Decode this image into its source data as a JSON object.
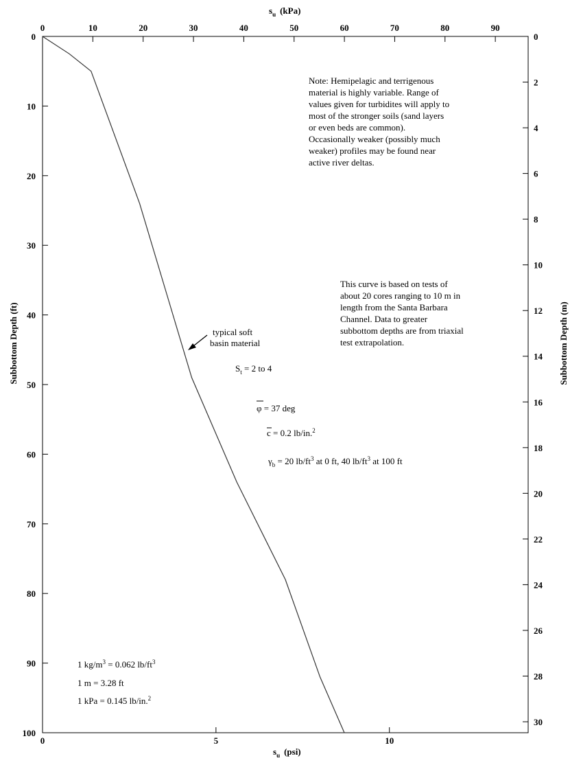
{
  "chart_data": {
    "type": "line",
    "x_label_bottom": "s",
    "x_label_bottom_sub": "u",
    "x_label_bottom_unit": "(psi)",
    "x_label_top": "s",
    "x_label_top_sub": "u",
    "x_label_top_unit": "(kPa)",
    "y_label_left": "Subbottom Depth (ft)",
    "y_label_right": "Subbottom Depth (m)",
    "xlim_psi": [
      0,
      14
    ],
    "ylim_ft": [
      0,
      100
    ],
    "x_ticks_psi": [
      0,
      5,
      10
    ],
    "x_ticks_kpa": [
      0,
      10,
      20,
      30,
      40,
      50,
      60,
      70,
      80,
      90
    ],
    "y_ticks_ft": [
      0,
      10,
      20,
      30,
      40,
      50,
      60,
      70,
      80,
      90,
      100
    ],
    "y_ticks_m": [
      0,
      2,
      4,
      6,
      8,
      10,
      12,
      14,
      16,
      18,
      20,
      22,
      24,
      26,
      28,
      30
    ],
    "grid": false,
    "series": [
      {
        "x": [
          0,
          0.77,
          1.4,
          2.8,
          4.3,
          5.6,
          7.0,
          8.0,
          8.7
        ],
        "y": [
          0,
          2.5,
          5,
          24,
          49,
          64,
          78,
          92,
          100
        ]
      }
    ]
  },
  "annotations": {
    "note": [
      "Note:   Hemipelagic and terrigenous",
      "material is highly variable.  Range of",
      "values given for turbidites will apply to",
      "most of the stronger soils (sand layers",
      "or even beds are common).",
      "Occasionally weaker (possibly much",
      "weaker) profiles may be found near",
      "active river deltas."
    ],
    "curve_basis": [
      "This curve is based on tests of",
      "about 20 cores ranging to 10 m in",
      "length from the Santa Barbara",
      "Channel.  Data to greater",
      "subbottom depths are from triaxial",
      "test extrapolation."
    ],
    "typical_line1": "typical soft",
    "typical_line2": "basin material",
    "st_symbol": "S",
    "st_sub": "t",
    "st_value": " =  2 to 4",
    "phi_symbol": "φ",
    "phi_value": " =  37 deg",
    "c_symbol": "c",
    "c_value": " =  0.2 lb/in.",
    "c_sup": "2",
    "gamma_symbol": "γ",
    "gamma_sub": "b",
    "gamma_v1": " =  20 lb/ft",
    "gamma_sup1": "3",
    "gamma_v2": " at 0 ft, 40 lb/ft",
    "gamma_sup2": "3",
    "gamma_v3": " at 100 ft",
    "conv1_a": "1 kg/m",
    "conv1_sup": "3",
    "conv1_b": "  =  0.062 lb/ft",
    "conv1_sup2": "3",
    "conv2": "1 m  =  3.28 ft",
    "conv3_a": "1 kPa  =  0.145 lb/in.",
    "conv3_sup": "2"
  }
}
